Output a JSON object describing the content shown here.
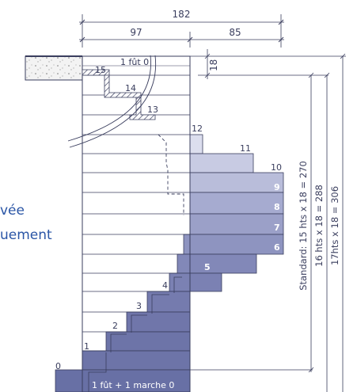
{
  "dimensions": {
    "total": "182",
    "left": "97",
    "right": "85",
    "top_step": "18"
  },
  "floor_label": "1 fût 0",
  "bottom_label": "1 fût + 1 marche 0",
  "step_numbers": [
    "0",
    "1",
    "2",
    "3",
    "4",
    "5",
    "6",
    "7",
    "8",
    "9",
    "10",
    "11",
    "12",
    "13",
    "14",
    "15"
  ],
  "vertical_dims": {
    "standard": "Standard: 15 hts x 18 = 270",
    "hts16": "16 hts x 18 = 288",
    "hts17": "17hts x 18 = 306"
  },
  "side_text": {
    "line1": "vée",
    "line2": "uement"
  },
  "colors": {
    "line": "#3a3e5e",
    "fill_dark": "#6d74a8",
    "fill_mid": "#8e94c0",
    "fill_light": "#b9bdda",
    "fill_pale": "#dcdeee",
    "accent_text": "#2a55a6"
  }
}
